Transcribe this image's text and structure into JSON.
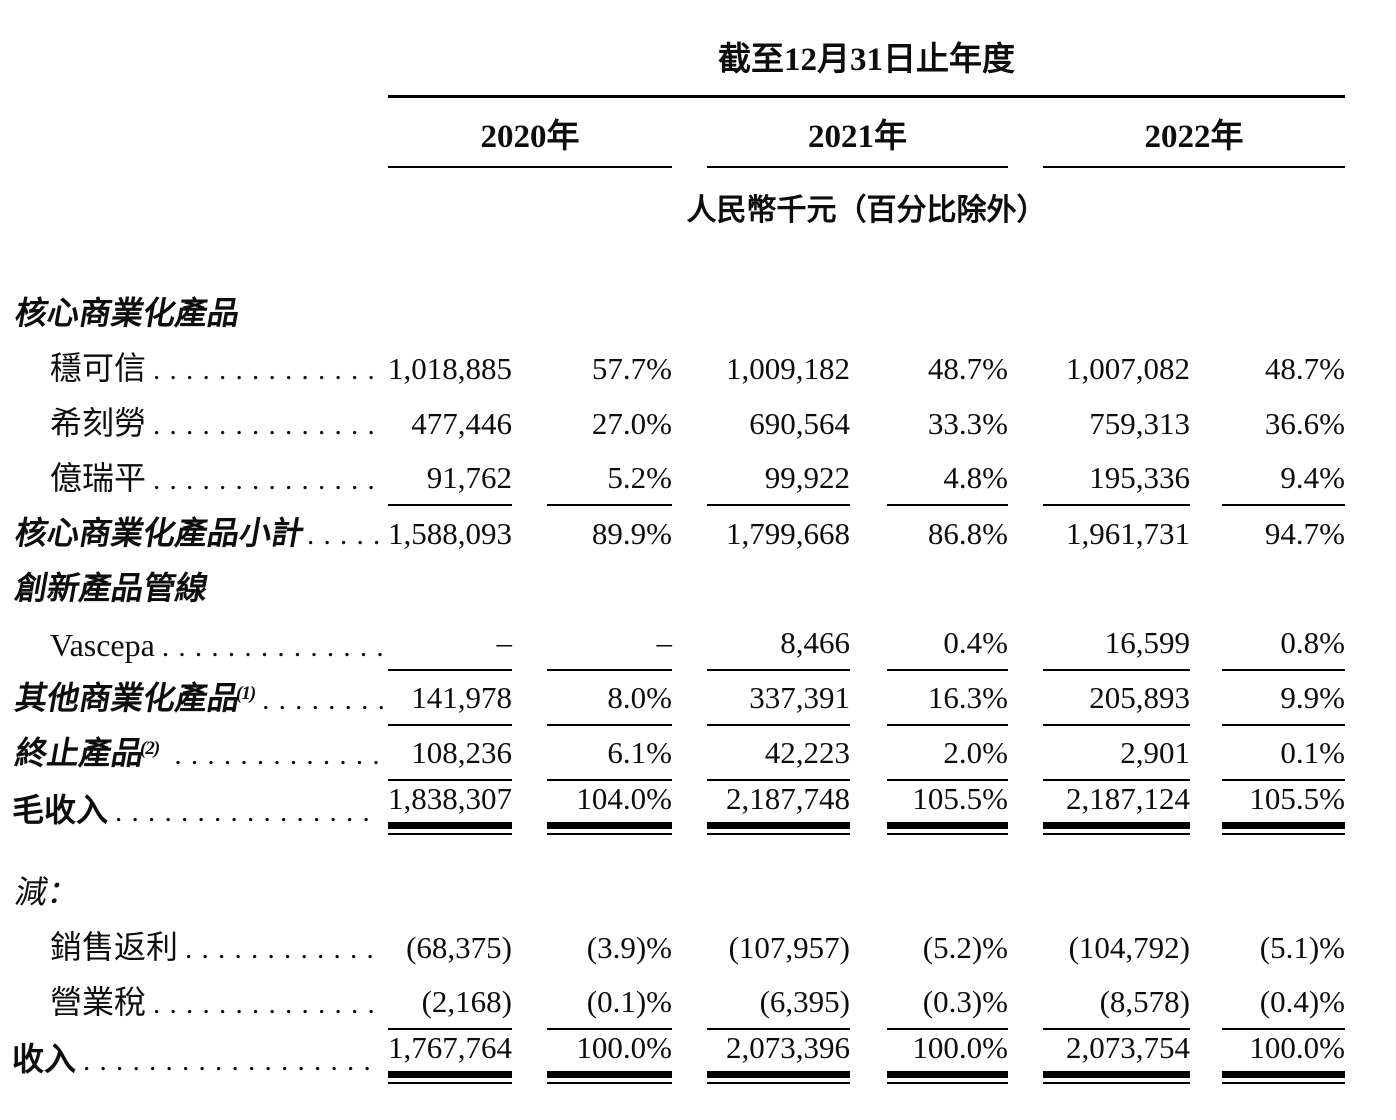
{
  "colors": {
    "text": "#0d0d0d",
    "background": "#ffffff",
    "rule": "#000000"
  },
  "table": {
    "title": "截至12月31日止年度",
    "years": [
      "2020年",
      "2021年",
      "2022年"
    ],
    "unit_note": "人民幣千元（百分比除外）",
    "rows": [
      {
        "style": "section",
        "label": "核心商業化產品"
      },
      {
        "style": "item",
        "label": "穩可信",
        "leader": ". . . . . . . . . . . . . .",
        "values": [
          "1,018,885",
          "57.7%",
          "1,009,182",
          "48.7%",
          "1,007,082",
          "48.7%"
        ],
        "rule": ""
      },
      {
        "style": "item",
        "label": "希刻勞",
        "leader": ". . . . . . . . . . . . . .",
        "values": [
          "477,446",
          "27.0%",
          "690,564",
          "33.3%",
          "759,313",
          "36.6%"
        ],
        "rule": ""
      },
      {
        "style": "item",
        "label": "億瑞平",
        "leader": ". . . . . . . . . . . . . .",
        "values": [
          "91,762",
          "5.2%",
          "99,922",
          "4.8%",
          "195,336",
          "9.4%"
        ],
        "rule": "single"
      },
      {
        "style": "subtotal",
        "label": "核心商業化產品小計",
        "leader": ". . . . .",
        "values": [
          "1,588,093",
          "89.9%",
          "1,799,668",
          "86.8%",
          "1,961,731",
          "94.7%"
        ],
        "rule": ""
      },
      {
        "style": "section",
        "label": "創新產品管線"
      },
      {
        "style": "item",
        "label": "Vascepa",
        "leader": ". . . . . . . . . . . . . .",
        "values": [
          "–",
          "–",
          "8,466",
          "0.4%",
          "16,599",
          "0.8%"
        ],
        "rule": "single"
      },
      {
        "style": "subtotal",
        "label": "其他商業化產品",
        "sup": "(1)",
        "leader": ". . . . . . . .",
        "values": [
          "141,978",
          "8.0%",
          "337,391",
          "16.3%",
          "205,893",
          "9.9%"
        ],
        "rule": "single"
      },
      {
        "style": "subtotal",
        "label": "終止產品",
        "sup": "(2)",
        "leader": " . . . . . . . . . . . . .",
        "values": [
          "108,236",
          "6.1%",
          "42,223",
          "2.0%",
          "2,901",
          "0.1%"
        ],
        "rule": "single"
      },
      {
        "style": "total",
        "label": "毛收入",
        "leader": ". . . . . . . . . . . . . . . .",
        "values": [
          "1,838,307",
          "104.0%",
          "2,187,748",
          "105.5%",
          "2,187,124",
          "105.5%"
        ],
        "rule": "double"
      },
      {
        "style": "less",
        "label": "減："
      },
      {
        "style": "item",
        "label": "銷售返利",
        "leader": ". . . . . . . . . . . .",
        "values": [
          "(68,375)",
          "(3.9)%",
          "(107,957)",
          "(5.2)%",
          "(104,792)",
          "(5.1)%"
        ],
        "rule": ""
      },
      {
        "style": "item",
        "label": "營業稅",
        "leader": ". . . . . . . . . . . . . .",
        "values": [
          "(2,168)",
          "(0.1)%",
          "(6,395)",
          "(0.3)%",
          "(8,578)",
          "(0.4)%"
        ],
        "rule": "single"
      },
      {
        "style": "total",
        "label": "收入",
        "leader": ". . . . . . . . . . . . . . . . . .",
        "values": [
          "1,767,764",
          "100.0%",
          "2,073,396",
          "100.0%",
          "2,073,754",
          "100.0%"
        ],
        "rule": "double"
      }
    ]
  }
}
